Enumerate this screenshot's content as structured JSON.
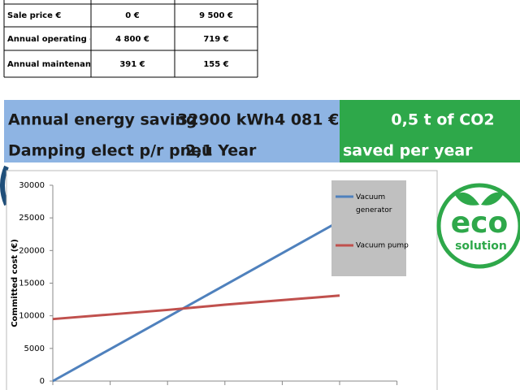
{
  "table": {
    "rows": [
      [
        "Sale price €",
        "0 €",
        "9 500 €"
      ],
      [
        "Annual operating co",
        "4 800 €",
        "719 €"
      ],
      [
        "Annual maintenanc",
        "391 €",
        "155 €"
      ]
    ]
  },
  "banner": {
    "saving_label": "Annual energy saving",
    "saving_energy": "32900 kWh",
    "saving_money": "4 081 €",
    "damping_label": "Damping elect p/r pneu",
    "damping_value": "2,1 Year",
    "co2_value": "0,5 t of CO2",
    "co2_note": "saved per year"
  },
  "logo": {
    "word": "eco",
    "sub": "solution"
  },
  "chart_data": {
    "type": "line",
    "y_label": "Committed cost (€)",
    "categories": [
      null,
      null,
      null,
      null,
      null,
      null
    ],
    "series": [
      {
        "name": "Vacuum generator",
        "color": "#4f81bd",
        "values": [
          0,
          4900,
          9800,
          14700,
          19600,
          24500
        ]
      },
      {
        "name": "Vacuum pump",
        "color": "#c0504d",
        "values": [
          9500,
          10200,
          10900,
          11700,
          12400,
          13100
        ]
      }
    ],
    "ylim": [
      0,
      30000
    ],
    "yticks": [
      0,
      5000,
      10000,
      15000,
      20000,
      25000,
      30000
    ],
    "grid": false
  }
}
